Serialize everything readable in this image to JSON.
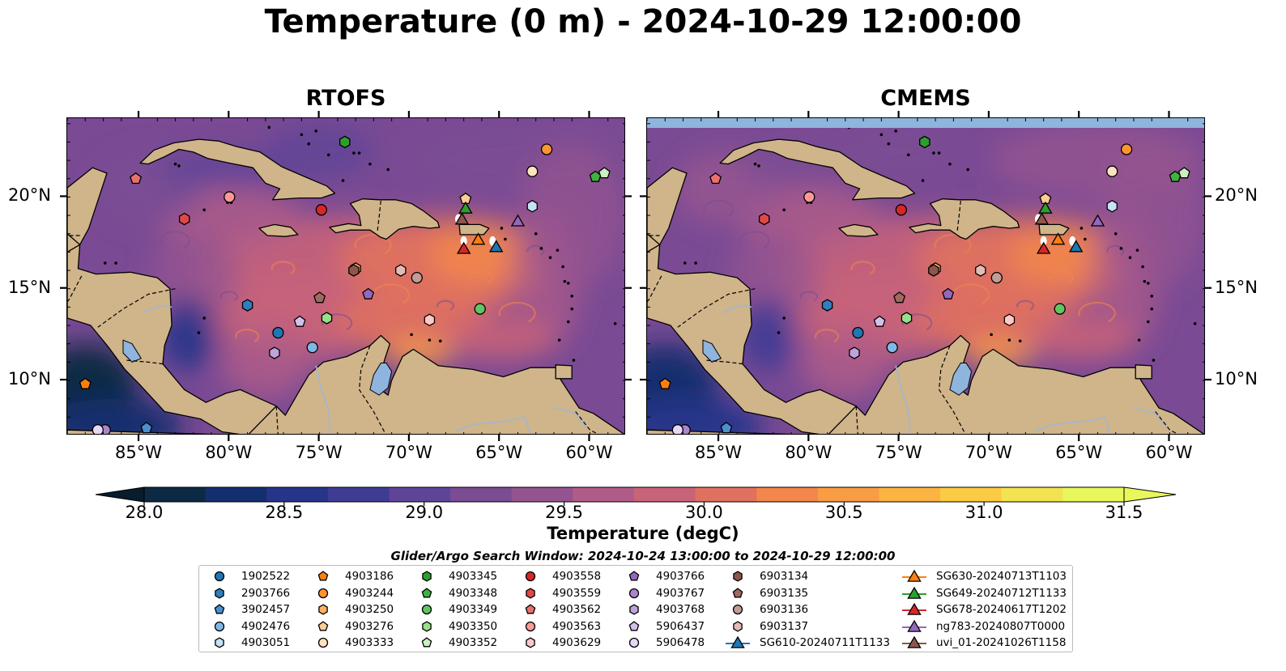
{
  "title": "Temperature (0 m) - 2024-10-29 12:00:00",
  "panels": [
    {
      "title": "RTOFS"
    },
    {
      "title": "CMEMS"
    }
  ],
  "axes": {
    "lon_labels": [
      "85°W",
      "80°W",
      "75°W",
      "70°W",
      "65°W",
      "60°W"
    ],
    "lon_values": [
      -85,
      -80,
      -75,
      -70,
      -65,
      -60
    ],
    "lat_labels": [
      "20°N",
      "15°N",
      "10°N"
    ],
    "lat_values": [
      20,
      15,
      10
    ],
    "lon_range": [
      -89,
      -58
    ],
    "lat_range": [
      7,
      24.3
    ]
  },
  "colorbar": {
    "label": "Temperature (degC)",
    "ticks": [
      "28.0",
      "28.5",
      "29.0",
      "29.5",
      "30.0",
      "30.5",
      "31.0",
      "31.5"
    ],
    "range": [
      28.0,
      31.5
    ],
    "extend": "both",
    "colors": [
      "#0d2a45",
      "#142f6e",
      "#26358a",
      "#3f3c93",
      "#5e4597",
      "#7a4c93",
      "#955490",
      "#b05c88",
      "#c86379",
      "#e0715e",
      "#f2864b",
      "#f99d45",
      "#fbb442",
      "#fbcb44",
      "#f3e350",
      "#e8f75c"
    ]
  },
  "colors": {
    "land": "#d0b48a",
    "lake": "#8fb4dd",
    "cmems_band": "#8fb4dd",
    "sea_base": "#7a4a94"
  },
  "search_window": "Glider/Argo Search Window: 2024-10-24 13:00:00 to 2024-10-29 12:00:00",
  "legend": [
    {
      "label": "1902522",
      "marker": "circle",
      "color": "#1f77b4"
    },
    {
      "label": "2903766",
      "marker": "hexagon",
      "color": "#2f7fc0"
    },
    {
      "label": "3902457",
      "marker": "pentagon",
      "color": "#4a90cf"
    },
    {
      "label": "4902476",
      "marker": "circle",
      "color": "#7fb8e6"
    },
    {
      "label": "4903051",
      "marker": "hexagon",
      "color": "#c5e2f7"
    },
    {
      "label": "4903186",
      "marker": "pentagon",
      "color": "#ff7f0e"
    },
    {
      "label": "4903244",
      "marker": "circle",
      "color": "#ff9430"
    },
    {
      "label": "4903250",
      "marker": "hexagon",
      "color": "#ffb060"
    },
    {
      "label": "4903276",
      "marker": "pentagon",
      "color": "#ffcc95"
    },
    {
      "label": "4903333",
      "marker": "circle",
      "color": "#ffe2c0"
    },
    {
      "label": "4903345",
      "marker": "hexagon",
      "color": "#2ca02c"
    },
    {
      "label": "4903348",
      "marker": "pentagon",
      "color": "#3fb23f"
    },
    {
      "label": "4903349",
      "marker": "circle",
      "color": "#62c462"
    },
    {
      "label": "4903350",
      "marker": "hexagon",
      "color": "#98df8a"
    },
    {
      "label": "4903352",
      "marker": "pentagon",
      "color": "#c8f0c0"
    },
    {
      "label": "4903558",
      "marker": "circle",
      "color": "#d62728"
    },
    {
      "label": "4903559",
      "marker": "hexagon",
      "color": "#e04848"
    },
    {
      "label": "4903562",
      "marker": "pentagon",
      "color": "#ea7070"
    },
    {
      "label": "4903563",
      "marker": "circle",
      "color": "#ff9896"
    },
    {
      "label": "4903629",
      "marker": "hexagon",
      "color": "#ffc8c6"
    },
    {
      "label": "4903766",
      "marker": "pentagon",
      "color": "#9467bd"
    },
    {
      "label": "4903767",
      "marker": "circle",
      "color": "#a985cc"
    },
    {
      "label": "4903768",
      "marker": "hexagon",
      "color": "#bfa3dc"
    },
    {
      "label": "5906437",
      "marker": "pentagon",
      "color": "#d3c0ea"
    },
    {
      "label": "5906478",
      "marker": "circle",
      "color": "#e6d8f5"
    },
    {
      "label": "6903134",
      "marker": "hexagon",
      "color": "#8c564b"
    },
    {
      "label": "6903135",
      "marker": "pentagon",
      "color": "#a06a5e"
    },
    {
      "label": "6903136",
      "marker": "circle",
      "color": "#c49c94"
    },
    {
      "label": "6903137",
      "marker": "hexagon",
      "color": "#e2bdb5"
    },
    {
      "label": "SG610-20240711T1133",
      "marker": "triangle",
      "color": "#1f77b4"
    },
    {
      "label": "SG630-20240713T1103",
      "marker": "triangle",
      "color": "#ff7f0e"
    },
    {
      "label": "SG649-20240712T1133",
      "marker": "triangle",
      "color": "#2ca02c"
    },
    {
      "label": "SG678-20240617T1202",
      "marker": "triangle",
      "color": "#d62728"
    },
    {
      "label": "ng783-20240807T0000",
      "marker": "triangle",
      "color": "#9467bd"
    },
    {
      "label": "uvi_01-20241026T1158",
      "marker": "triangle",
      "color": "#8c564b"
    }
  ],
  "observations": [
    {
      "id": "1902522",
      "lon": -77.3,
      "lat": 12.6
    },
    {
      "id": "2903766",
      "lon": -79.0,
      "lat": 14.1
    },
    {
      "id": "3902457",
      "lon": -84.6,
      "lat": 7.4
    },
    {
      "id": "4902476",
      "lon": -75.4,
      "lat": 11.8
    },
    {
      "id": "4903051",
      "lon": -63.2,
      "lat": 19.5
    },
    {
      "id": "4903186",
      "lon": -88.0,
      "lat": 9.8
    },
    {
      "id": "4903244",
      "lon": -62.4,
      "lat": 22.6
    },
    {
      "id": "4903250",
      "lon": -73.0,
      "lat": 16.1
    },
    {
      "id": "4903276",
      "lon": -66.9,
      "lat": 19.9
    },
    {
      "id": "4903333",
      "lon": -63.2,
      "lat": 21.4
    },
    {
      "id": "4903345",
      "lon": -73.6,
      "lat": 23.0
    },
    {
      "id": "4903348",
      "lon": -59.7,
      "lat": 21.1
    },
    {
      "id": "4903349",
      "lon": -66.1,
      "lat": 13.9
    },
    {
      "id": "4903350",
      "lon": -74.6,
      "lat": 13.4
    },
    {
      "id": "4903352",
      "lon": -59.2,
      "lat": 21.3
    },
    {
      "id": "4903558",
      "lon": -74.9,
      "lat": 19.3
    },
    {
      "id": "4903559",
      "lon": -82.5,
      "lat": 18.8
    },
    {
      "id": "4903562",
      "lon": -85.2,
      "lat": 21.0
    },
    {
      "id": "4903563",
      "lon": -80.0,
      "lat": 20.0
    },
    {
      "id": "4903629",
      "lon": -68.9,
      "lat": 13.3
    },
    {
      "id": "4903766",
      "lon": -72.3,
      "lat": 14.7
    },
    {
      "id": "4903767",
      "lon": -86.9,
      "lat": 7.3
    },
    {
      "id": "4903768",
      "lon": -77.5,
      "lat": 11.5
    },
    {
      "id": "5906437",
      "lon": -76.1,
      "lat": 13.2
    },
    {
      "id": "5906478",
      "lon": -87.3,
      "lat": 7.3
    },
    {
      "id": "6903134",
      "lon": -73.1,
      "lat": 16.0
    },
    {
      "id": "6903135",
      "lon": -75.0,
      "lat": 14.5
    },
    {
      "id": "6903136",
      "lon": -69.6,
      "lat": 15.6
    },
    {
      "id": "6903137",
      "lon": -70.5,
      "lat": 16.0
    },
    {
      "id": "SG610-20240711T1133",
      "lon": -65.2,
      "lat": 17.3
    },
    {
      "id": "SG630-20240713T1103",
      "lon": -66.2,
      "lat": 17.7
    },
    {
      "id": "SG649-20240712T1133",
      "lon": -66.9,
      "lat": 19.4
    },
    {
      "id": "SG678-20240617T1202",
      "lon": -67.0,
      "lat": 17.2
    },
    {
      "id": "ng783-20240807T0000",
      "lon": -64.0,
      "lat": 18.7
    },
    {
      "id": "uvi_01-20241026T1158",
      "lon": -67.1,
      "lat": 18.8
    }
  ]
}
